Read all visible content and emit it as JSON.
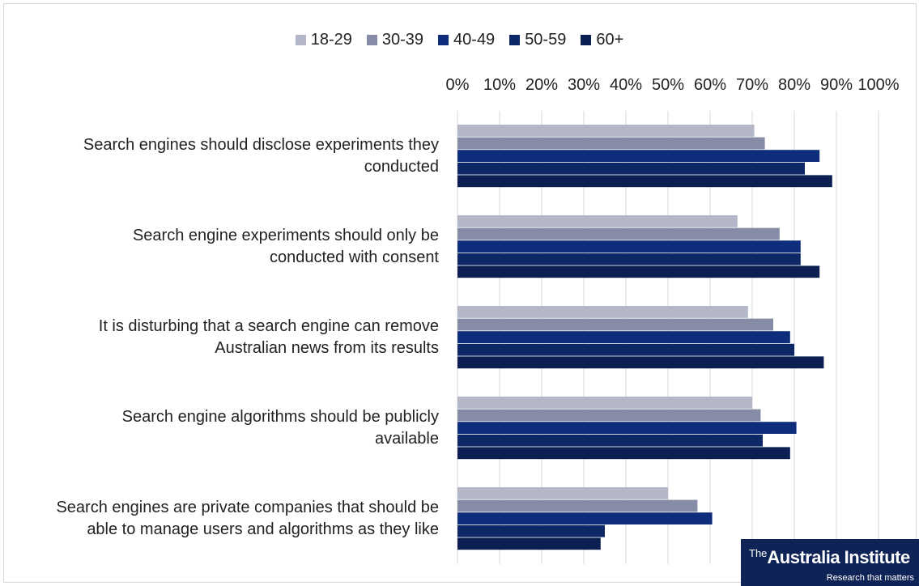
{
  "chart_data": {
    "type": "bar",
    "orientation": "horizontal",
    "categories": [
      "Search engines should disclose experiments they conducted",
      "Search engine experiments should only be conducted with consent",
      "It is disturbing that a search engine can remove Australian news from its results",
      "Search engine algorithms should be publicly available",
      "Search engines are private companies that should be able to manage users and algorithms as they like"
    ],
    "category_lines": [
      [
        "Search engines should disclose experiments they",
        "conducted"
      ],
      [
        "Search engine experiments should only be",
        "conducted with consent"
      ],
      [
        "It is disturbing that a search engine can remove",
        "Australian news from its results"
      ],
      [
        "Search engine algorithms should be publicly",
        "available"
      ],
      [
        "Search engines are private companies that should be",
        "able to manage users and algorithms as they like"
      ]
    ],
    "series": [
      {
        "name": "18-29",
        "color": "#b3b7c7",
        "values": [
          70.5,
          66.5,
          69,
          70,
          50
        ]
      },
      {
        "name": "30-39",
        "color": "#868ca6",
        "values": [
          73,
          76.5,
          75,
          72,
          57
        ]
      },
      {
        "name": "40-49",
        "color": "#0e2d7a",
        "values": [
          86,
          81.5,
          79,
          80.5,
          60.5
        ]
      },
      {
        "name": "50-59",
        "color": "#0d2866",
        "values": [
          82.5,
          81.5,
          80,
          72.5,
          35
        ]
      },
      {
        "name": "60+",
        "color": "#0b1f52",
        "values": [
          89,
          86,
          87,
          79,
          34
        ]
      }
    ],
    "xlim": [
      0,
      100
    ],
    "x_ticks": [
      "0%",
      "10%",
      "20%",
      "30%",
      "40%",
      "50%",
      "60%",
      "70%",
      "80%",
      "90%",
      "100%"
    ],
    "x_axis_position": "top",
    "grid": true,
    "legend_position": "top"
  },
  "branding": {
    "the": "The",
    "name": "Australia Institute",
    "tagline": "Research that matters"
  }
}
